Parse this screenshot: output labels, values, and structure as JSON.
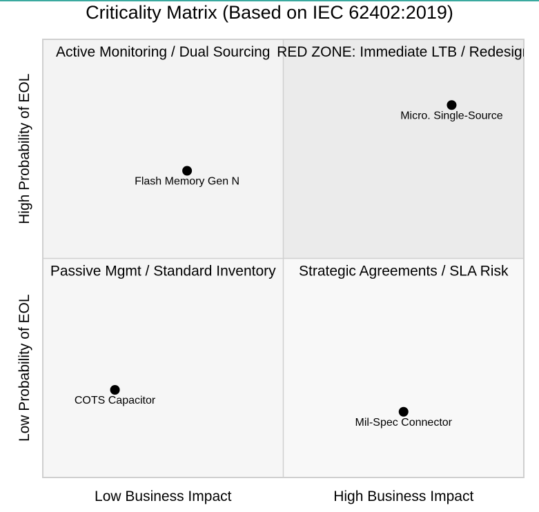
{
  "title": "Criticality Matrix (Based on IEC 62402:2019)",
  "colors": {
    "top_rule": "#3aa99f",
    "frame": "#cfcfcf",
    "divider": "#d0d0d0",
    "quadrant_top_left": "#f3f3f3",
    "quadrant_top_right": "#ebebeb",
    "quadrant_bottom_left": "#f6f6f6",
    "quadrant_bottom_right": "#f8f8f8",
    "point": "#000000"
  },
  "chart_data": {
    "type": "scatter",
    "title": "Criticality Matrix (Based on IEC 62402:2019)",
    "xlim": [
      0,
      2
    ],
    "ylim": [
      0,
      2
    ],
    "x_tick_labels": [
      "Low Business Impact",
      "High Business Impact"
    ],
    "y_tick_labels": [
      "Low Probability of EOL",
      "High Probability of EOL"
    ],
    "grid": false,
    "quadrants": [
      {
        "id": "top-left",
        "label": "Active Monitoring / Dual Sourcing"
      },
      {
        "id": "top-right",
        "label": "RED ZONE: Immediate LTB / Redesign"
      },
      {
        "id": "bottom-left",
        "label": "Passive Mgmt / Standard Inventory"
      },
      {
        "id": "bottom-right",
        "label": "Strategic Agreements / SLA Risk"
      }
    ],
    "points": [
      {
        "label": "Micro. Single-Source",
        "x": 1.7,
        "y": 1.7
      },
      {
        "label": "Flash Memory Gen N",
        "x": 0.6,
        "y": 1.4
      },
      {
        "label": "COTS Capacitor",
        "x": 0.3,
        "y": 0.4
      },
      {
        "label": "Mil-Spec Connector",
        "x": 1.5,
        "y": 0.3
      }
    ]
  }
}
